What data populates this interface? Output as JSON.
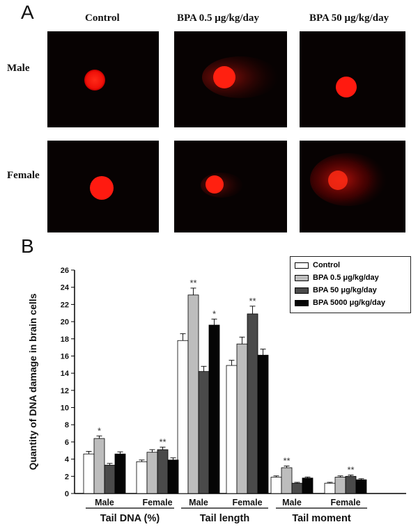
{
  "panel_a": {
    "label": "A",
    "columns": [
      "Control",
      "BPA 0.5 μg/kg/day",
      "BPA 50 μg/kg/day"
    ],
    "rows": [
      "Male",
      "Female"
    ]
  },
  "panel_b": {
    "label": "B"
  },
  "colors": {
    "Control": "#ffffff",
    "BPA 0.5 μg/kg/day": "#bdbdbd",
    "BPA 50 μg/kg/day": "#4a4a4a",
    "BPA 5000 μg/kg/day": "#050505",
    "comet": "#ff1a10",
    "micrograph_bg": "#070202"
  },
  "chart_data": {
    "type": "bar",
    "ylabel": "Quantity of DNA damage in brain cells",
    "ylim": [
      0,
      26
    ],
    "yticks": [
      0,
      2,
      4,
      6,
      8,
      10,
      12,
      14,
      16,
      18,
      20,
      22,
      24,
      26
    ],
    "legend_position": "top-right",
    "groups": [
      "Tail DNA (%)",
      "Tail length",
      "Tail moment"
    ],
    "categories": [
      "Male",
      "Female",
      "Male",
      "Female",
      "Male",
      "Female"
    ],
    "series": [
      {
        "name": "Control",
        "values": [
          4.6,
          3.7,
          17.8,
          14.9,
          1.9,
          1.2
        ],
        "errors": [
          0.3,
          0.2,
          0.8,
          0.6,
          0.15,
          0.1
        ],
        "annotations": [
          "",
          "",
          "",
          "",
          "",
          ""
        ]
      },
      {
        "name": "BPA 0.5 μg/kg/day",
        "values": [
          6.4,
          4.8,
          23.1,
          17.4,
          3.0,
          1.9
        ],
        "errors": [
          0.3,
          0.3,
          0.8,
          0.8,
          0.2,
          0.15
        ],
        "annotations": [
          "*",
          "",
          "**",
          "",
          "**",
          ""
        ]
      },
      {
        "name": "BPA 50 μg/kg/day",
        "values": [
          3.3,
          5.1,
          14.2,
          20.9,
          1.2,
          2.0
        ],
        "errors": [
          0.2,
          0.3,
          0.6,
          0.9,
          0.1,
          0.15
        ],
        "annotations": [
          "",
          "**",
          "",
          "**",
          "",
          "**"
        ]
      },
      {
        "name": "BPA 5000 μg/kg/day",
        "values": [
          4.6,
          3.9,
          19.6,
          16.1,
          1.8,
          1.6
        ],
        "errors": [
          0.25,
          0.25,
          0.7,
          0.7,
          0.12,
          0.12
        ],
        "annotations": [
          "",
          "",
          "*",
          "",
          "",
          ""
        ]
      }
    ]
  }
}
